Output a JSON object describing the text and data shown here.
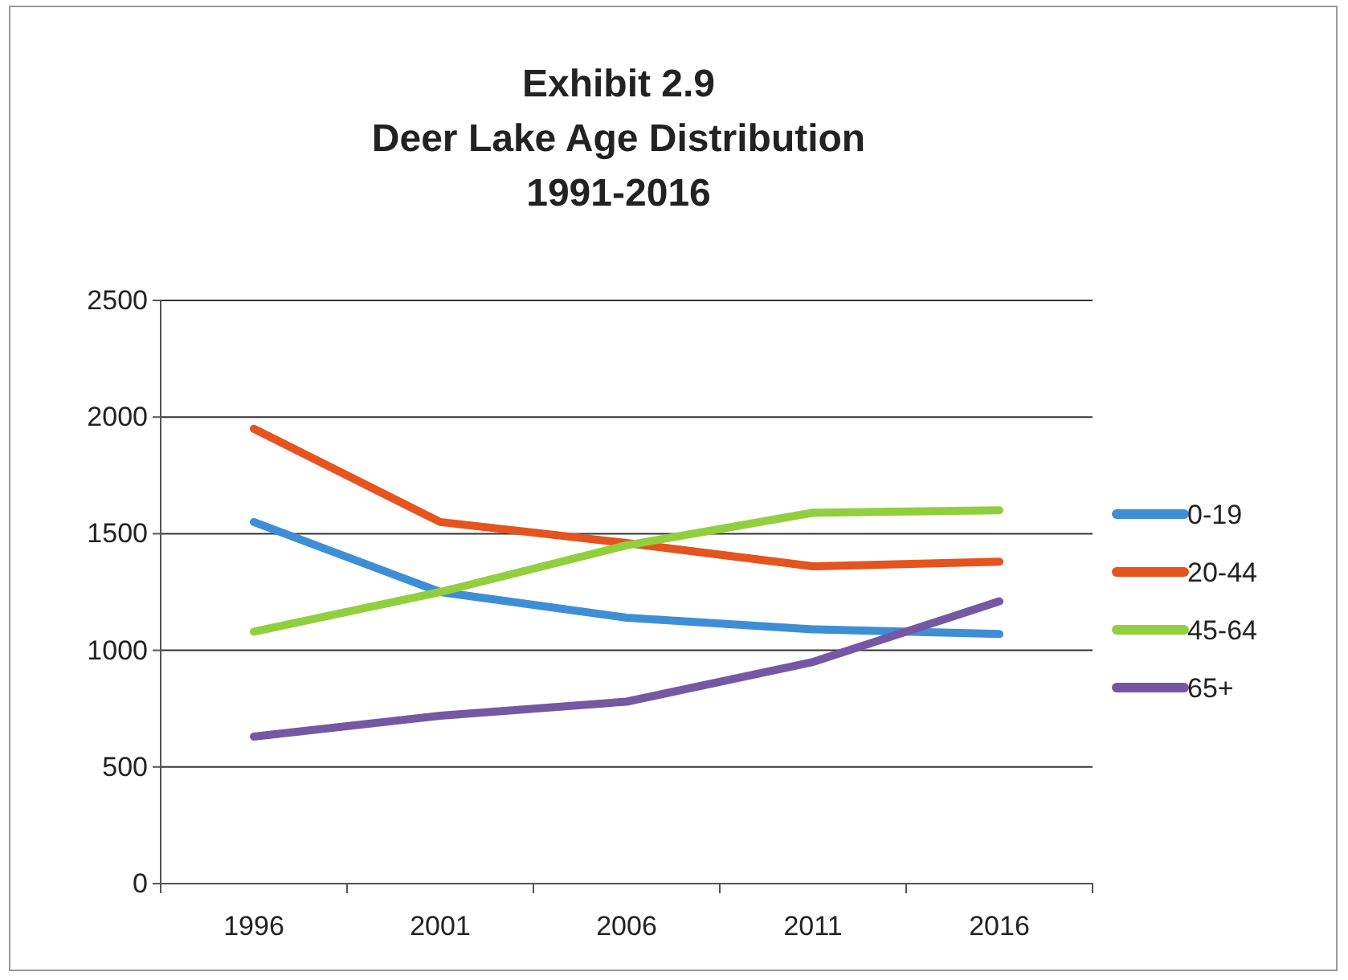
{
  "chart_data": {
    "type": "line",
    "title": "Exhibit 2.9\nDeer Lake Age Distribution\n1991-2016",
    "categories": [
      "1996",
      "2001",
      "2006",
      "2011",
      "2016"
    ],
    "series": [
      {
        "name": "0-19",
        "color": "#3e8ed6",
        "values": [
          1550,
          1250,
          1140,
          1090,
          1070
        ]
      },
      {
        "name": "20-44",
        "color": "#e5531e",
        "values": [
          1950,
          1550,
          1460,
          1360,
          1380
        ]
      },
      {
        "name": "45-64",
        "color": "#92cf3e",
        "values": [
          1080,
          1250,
          1450,
          1590,
          1600
        ]
      },
      {
        "name": "65+",
        "color": "#7458a4",
        "values": [
          630,
          720,
          780,
          950,
          1210
        ]
      }
    ],
    "ylim": [
      0,
      2500
    ],
    "yticks": [
      0,
      500,
      1000,
      1500,
      2000,
      2500
    ],
    "grid": "y",
    "legend": "right",
    "marker": "none",
    "line_style": "solid"
  }
}
